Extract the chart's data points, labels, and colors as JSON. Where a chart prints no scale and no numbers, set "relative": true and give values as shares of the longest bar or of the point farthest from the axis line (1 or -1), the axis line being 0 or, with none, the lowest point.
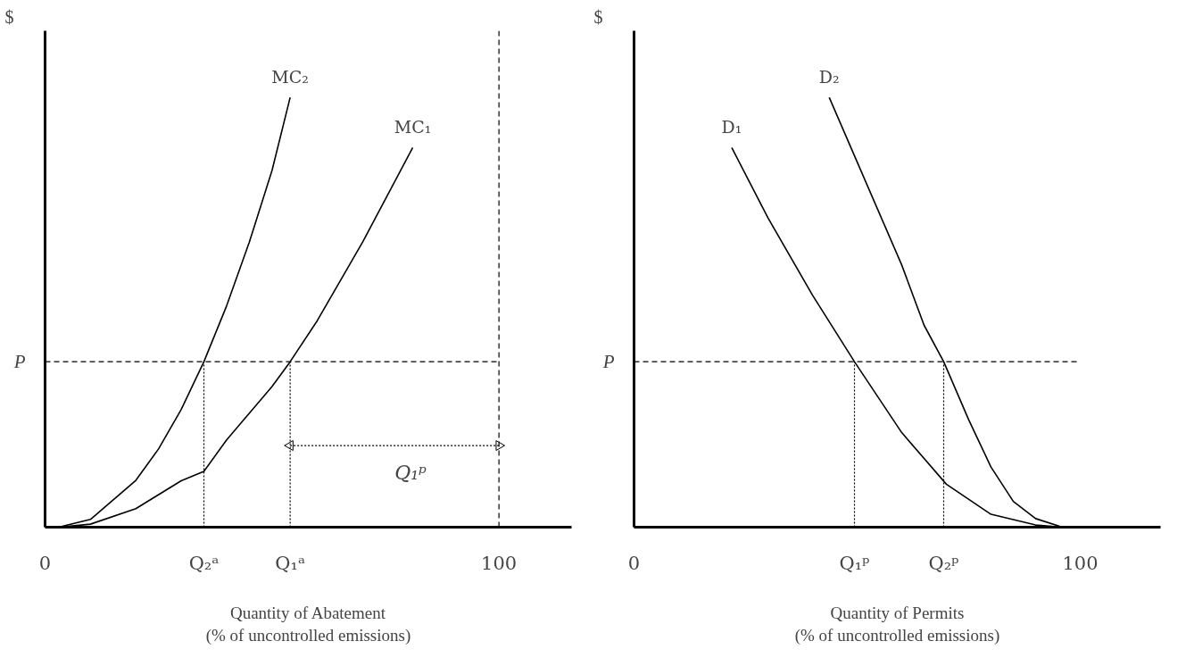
{
  "chart_data": [
    {
      "type": "line",
      "relative": true,
      "ylabel": "$",
      "xlabel": "Quantity of Abatement\n(% of uncontrolled emissions)",
      "xlim": [
        0,
        116
      ],
      "xticks": [
        0,
        {
          "value": 35,
          "label": "Q₂ᵃ"
        },
        {
          "value": 54,
          "label": "Q₁ᵃ"
        },
        100
      ],
      "grid": false,
      "marker": "none",
      "series": [
        {
          "name": "MC₂",
          "color": "#000000",
          "x": [
            3,
            10,
            20,
            25,
            30,
            35,
            40,
            45,
            50,
            54
          ],
          "values": [
            0,
            0.018,
            0.109,
            0.182,
            0.274,
            0.385,
            0.515,
            0.663,
            0.83,
            1
          ]
        },
        {
          "name": "MC₁",
          "color": "#000000",
          "x": [
            3,
            10,
            20,
            30,
            35,
            40,
            50,
            54,
            60,
            70,
            81
          ],
          "values": [
            0,
            0.007,
            0.043,
            0.108,
            0.13,
            0.203,
            0.327,
            0.385,
            0.481,
            0.664,
            0.883
          ]
        },
        {
          "color": "#000000",
          "line_style": "dotted",
          "x": [
            35,
            35
          ],
          "values": [
            0,
            0.385
          ]
        },
        {
          "color": "#000000",
          "line_style": "dotted",
          "x": [
            54,
            54
          ],
          "values": [
            0,
            0.385
          ]
        },
        {
          "color": "#000000",
          "line_style": "dotted",
          "marker": "triangle",
          "x": [
            54,
            100
          ],
          "values": [
            0.19,
            0.19
          ]
        }
      ],
      "ref_lines": [
        {
          "axis": "y",
          "value": 0.385,
          "label": "P",
          "line_style": "dashed",
          "color": "#000000"
        },
        {
          "axis": "x",
          "value": 100,
          "line_style": "dashed",
          "color": "#000000"
        }
      ],
      "annotations": [
        {
          "text": "Q₁ᵖ",
          "x": 77,
          "y": 0.19
        }
      ]
    },
    {
      "type": "line",
      "relative": true,
      "ylabel": "$",
      "xlabel": "Quantity of Permits\n(% of uncontrolled emissions)",
      "xlim": [
        0,
        118
      ],
      "xticks": [
        0,
        {
          "value": 49.4,
          "label": "Q₁ᵖ"
        },
        {
          "value": 69.4,
          "label": "Q₂ᵖ"
        },
        100
      ],
      "grid": false,
      "marker": "none",
      "series": [
        {
          "name": "D₁",
          "color": "#000000",
          "x": [
            21.9,
            30,
            40,
            49.4,
            60,
            70,
            80,
            90,
            96
          ],
          "values": [
            0.883,
            0.72,
            0.54,
            0.385,
            0.22,
            0.1,
            0.03,
            0.005,
            0
          ]
        },
        {
          "name": "D₂",
          "color": "#000000",
          "x": [
            43.75,
            50,
            55,
            60,
            65,
            69.4,
            75,
            80,
            85,
            90,
            96
          ],
          "values": [
            1,
            0.85,
            0.73,
            0.61,
            0.47,
            0.385,
            0.25,
            0.14,
            0.06,
            0.02,
            0
          ]
        },
        {
          "color": "#000000",
          "line_style": "dotted",
          "x": [
            49.4,
            49.4
          ],
          "values": [
            0,
            0.385
          ]
        },
        {
          "color": "#000000",
          "line_style": "dotted",
          "x": [
            69.4,
            69.4
          ],
          "values": [
            0,
            0.385
          ]
        }
      ],
      "ref_lines": [
        {
          "axis": "y",
          "value": 0.385,
          "label": "P",
          "line_style": "dashed",
          "color": "#000000"
        }
      ]
    }
  ]
}
